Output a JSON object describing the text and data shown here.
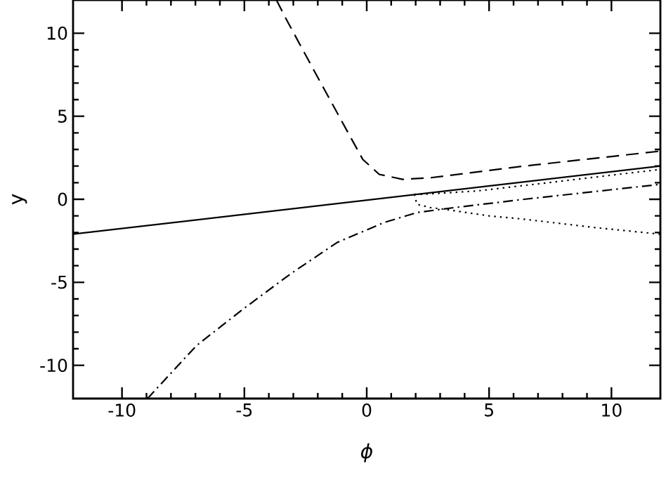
{
  "chart_data": {
    "type": "line",
    "xlabel": "ϕ",
    "ylabel": "y",
    "xlim": [
      -12,
      12
    ],
    "ylim": [
      -12,
      12
    ],
    "xticks": [
      -10,
      -5,
      0,
      5,
      10
    ],
    "yticks": [
      -10,
      -5,
      0,
      5,
      10
    ],
    "grid": false,
    "marker": "none",
    "series": [
      {
        "color": "#000000",
        "line_style": "solid",
        "x": [
          -12,
          12
        ],
        "values": [
          -2.1,
          2.0
        ]
      },
      {
        "color": "#000000",
        "line_style": "dashed",
        "x": [
          -3.69,
          -3.31,
          -2.17,
          -1.02,
          -0.16,
          0.51,
          1.47,
          2.62,
          6.44,
          12
        ],
        "values": [
          12,
          10.9,
          7.8,
          4.7,
          2.4,
          1.5,
          1.2,
          1.3,
          2.0,
          2.9
        ]
      },
      {
        "color": "#000000",
        "line_style": "dashdot",
        "x": [
          -8.96,
          -6.95,
          -5.04,
          -3.12,
          -1.21,
          0.71,
          2.05,
          3.58,
          6.44,
          12
        ],
        "values": [
          -12,
          -8.8,
          -6.6,
          -4.5,
          -2.6,
          -1.4,
          -0.8,
          -0.5,
          0.0,
          0.9
        ]
      },
      {
        "color": "#000000",
        "line_style": "dotted",
        "x": [
          1.95,
          2.3,
          4.5,
          8,
          12
        ],
        "values": [
          0.3,
          0.3,
          0.5,
          1.1,
          1.8
        ]
      },
      {
        "color": "#000000",
        "line_style": "dotted",
        "x": [
          1.95,
          2.05,
          2.6,
          3.17,
          5,
          6.44,
          9.3,
          12
        ],
        "values": [
          0.3,
          -0.3,
          -0.5,
          -0.6,
          -1.0,
          -1.2,
          -1.7,
          -2.1
        ]
      }
    ]
  }
}
